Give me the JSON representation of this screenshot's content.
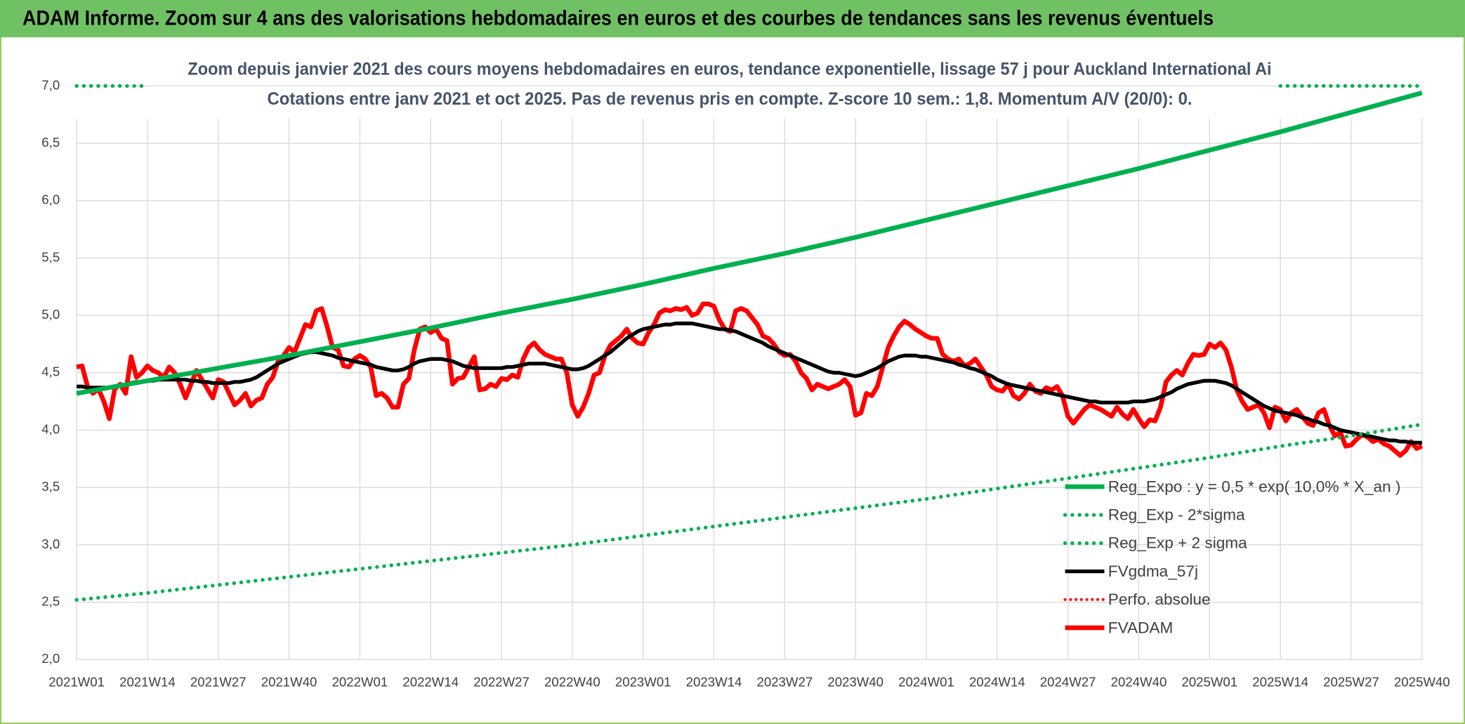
{
  "chart_data": {
    "type": "line",
    "title": "ADAM Informe. Zoom sur 4 ans des valorisations hebdomadaires en euros et des courbes de tendances sans les revenus éventuels",
    "subtitle": [
      "Zoom depuis janvier 2021 des cours moyens hebdomadaires en euros, tendance exponentielle, lissage 57 j pour Auckland International Ai",
      "Cotations entre janv 2021 et oct 2025. Pas de revenus pris en compte. Z-score 10 sem.: 1,8. Momentum A/V (20/0): 0."
    ],
    "categories": [
      "2021W01",
      null,
      null,
      null,
      null,
      null,
      null,
      null,
      null,
      null,
      null,
      null,
      null,
      "2021W14",
      null,
      null,
      null,
      null,
      null,
      null,
      null,
      null,
      null,
      null,
      null,
      null,
      "2021W27",
      null,
      null,
      null,
      null,
      null,
      null,
      null,
      null,
      null,
      null,
      null,
      null,
      "2021W40",
      null,
      null,
      null,
      null,
      null,
      null,
      null,
      null,
      null,
      null,
      null,
      null,
      "2022W01",
      null,
      null,
      null,
      null,
      null,
      null,
      null,
      null,
      null,
      null,
      null,
      null,
      "2022W14",
      null,
      null,
      null,
      null,
      null,
      null,
      null,
      null,
      null,
      null,
      null,
      null,
      "2022W27",
      null,
      null,
      null,
      null,
      null,
      null,
      null,
      null,
      null,
      null,
      null,
      null,
      "2022W40",
      null,
      null,
      null,
      null,
      null,
      null,
      null,
      null,
      null,
      null,
      null,
      null,
      "2023W01",
      null,
      null,
      null,
      null,
      null,
      null,
      null,
      null,
      null,
      null,
      null,
      null,
      "2023W14",
      null,
      null,
      null,
      null,
      null,
      null,
      null,
      null,
      null,
      null,
      null,
      null,
      "2023W27",
      null,
      null,
      null,
      null,
      null,
      null,
      null,
      null,
      null,
      null,
      null,
      null,
      "2023W40",
      null,
      null,
      null,
      null,
      null,
      null,
      null,
      null,
      null,
      null,
      null,
      null,
      "2024W01",
      null,
      null,
      null,
      null,
      null,
      null,
      null,
      null,
      null,
      null,
      null,
      null,
      "2024W14",
      null,
      null,
      null,
      null,
      null,
      null,
      null,
      null,
      null,
      null,
      null,
      null,
      "2024W27",
      null,
      null,
      null,
      null,
      null,
      null,
      null,
      null,
      null,
      null,
      null,
      null,
      "2024W40",
      null,
      null,
      null,
      null,
      null,
      null,
      null,
      null,
      null,
      null,
      null,
      null,
      "2025W01",
      null,
      null,
      null,
      null,
      null,
      null,
      null,
      null,
      null,
      null,
      null,
      null,
      "2025W14",
      null,
      null,
      null,
      null,
      null,
      null,
      null,
      null,
      null,
      null,
      null,
      null,
      "2025W27",
      null,
      null,
      null,
      null,
      null,
      null,
      null,
      null,
      null,
      null,
      null,
      null,
      "2025W40"
    ],
    "ylim": [
      2,
      7
    ],
    "yticks": [
      {
        "value": 2,
        "label": "2,0"
      },
      {
        "value": 2.5,
        "label": "2,5"
      },
      {
        "value": 3,
        "label": "3,0"
      },
      {
        "value": 3.5,
        "label": "3,5"
      },
      {
        "value": 4,
        "label": "4,0"
      },
      {
        "value": 4.5,
        "label": "4,5"
      },
      {
        "value": 5,
        "label": "5,0"
      },
      {
        "value": 5.5,
        "label": "5,5"
      },
      {
        "value": 6,
        "label": "6,0"
      },
      {
        "value": 6.5,
        "label": "6,5"
      },
      {
        "value": 7,
        "label": "7,0"
      }
    ],
    "grid": true,
    "legend": "right",
    "series": [
      {
        "name": "Reg_Expo : y = 0,5 * exp( 10,0% *  X_an )",
        "color": "#00b050",
        "style": "solid",
        "width": 5,
        "x": [
          "2021W01",
          "2021W14",
          "2021W27",
          "2021W40",
          "2022W01",
          "2022W14",
          "2022W27",
          "2022W40",
          "2023W01",
          "2023W14",
          "2023W27",
          "2023W40",
          "2024W01",
          "2024W14",
          "2024W27",
          "2024W40",
          "2025W01",
          "2025W14",
          "2025W27",
          "2025W40"
        ],
        "values": [
          4.32,
          4.43,
          4.54,
          4.65,
          4.77,
          4.89,
          5.02,
          5.14,
          5.27,
          5.41,
          5.54,
          5.68,
          5.83,
          5.98,
          6.13,
          6.28,
          6.44,
          6.6,
          6.77,
          6.94
        ]
      },
      {
        "name": "Reg_Exp - 2*sigma",
        "color": "#00b050",
        "style": "dotted",
        "width": 4,
        "x": [
          "2021W01",
          "2021W14",
          "2021W27",
          "2021W40",
          "2022W01",
          "2022W14",
          "2022W27",
          "2022W40",
          "2023W01",
          "2023W14",
          "2023W27",
          "2023W40",
          "2024W01",
          "2024W14",
          "2024W27",
          "2024W40",
          "2025W01",
          "2025W14",
          "2025W27",
          "2025W40"
        ],
        "values": [
          2.52,
          2.58,
          2.65,
          2.72,
          2.79,
          2.86,
          2.93,
          3.0,
          3.08,
          3.16,
          3.24,
          3.32,
          3.4,
          3.49,
          3.58,
          3.67,
          3.76,
          3.86,
          3.95,
          4.05
        ]
      },
      {
        "name": "Reg_Exp + 2 sigma",
        "color": "#00b050",
        "style": "dotted",
        "width": 4,
        "x": [
          "2021W01",
          "2021W14",
          "2021W14",
          "2025W14",
          "2025W40"
        ],
        "values": [
          7,
          7,
          null,
          7,
          7
        ]
      },
      {
        "name": "FVgdma_57j",
        "color": "#000000",
        "style": "solid",
        "width": 4,
        "values": [
          4.38,
          4.38,
          4.37,
          4.37,
          4.37,
          4.37,
          4.37,
          4.38,
          4.39,
          4.4,
          4.41,
          4.42,
          4.42,
          4.43,
          4.43,
          4.44,
          4.44,
          4.44,
          4.44,
          4.44,
          4.44,
          4.43,
          4.43,
          4.42,
          4.42,
          4.41,
          4.41,
          4.41,
          4.41,
          4.42,
          4.42,
          4.43,
          4.44,
          4.46,
          4.49,
          4.52,
          4.55,
          4.58,
          4.6,
          4.62,
          4.64,
          4.66,
          4.67,
          4.68,
          4.68,
          4.67,
          4.66,
          4.65,
          4.63,
          4.62,
          4.61,
          4.6,
          4.59,
          4.58,
          4.57,
          4.55,
          4.54,
          4.53,
          4.52,
          4.52,
          4.53,
          4.55,
          4.58,
          4.6,
          4.61,
          4.62,
          4.62,
          4.62,
          4.61,
          4.6,
          4.58,
          4.56,
          4.55,
          4.54,
          4.54,
          4.54,
          4.54,
          4.54,
          4.54,
          4.55,
          4.55,
          4.56,
          4.57,
          4.58,
          4.58,
          4.58,
          4.58,
          4.57,
          4.56,
          4.55,
          4.54,
          4.53,
          4.53,
          4.54,
          4.56,
          4.59,
          4.62,
          4.65,
          4.68,
          4.72,
          4.76,
          4.8,
          4.83,
          4.86,
          4.88,
          4.89,
          4.9,
          4.91,
          4.92,
          4.92,
          4.93,
          4.93,
          4.93,
          4.93,
          4.92,
          4.91,
          4.9,
          4.89,
          4.88,
          4.88,
          4.87,
          4.86,
          4.84,
          4.82,
          4.8,
          4.78,
          4.76,
          4.73,
          4.71,
          4.69,
          4.67,
          4.65,
          4.63,
          4.61,
          4.59,
          4.57,
          4.55,
          4.53,
          4.51,
          4.5,
          4.5,
          4.49,
          4.48,
          4.47,
          4.48,
          4.5,
          4.52,
          4.54,
          4.57,
          4.6,
          4.62,
          4.64,
          4.65,
          4.65,
          4.65,
          4.64,
          4.64,
          4.63,
          4.62,
          4.61,
          4.6,
          4.59,
          4.57,
          4.56,
          4.54,
          4.53,
          4.51,
          4.49,
          4.47,
          4.44,
          4.42,
          4.4,
          4.39,
          4.38,
          4.37,
          4.36,
          4.35,
          4.34,
          4.33,
          4.32,
          4.31,
          4.3,
          4.29,
          4.28,
          4.27,
          4.26,
          4.25,
          4.25,
          4.24,
          4.24,
          4.24,
          4.24,
          4.24,
          4.24,
          4.25,
          4.25,
          4.25,
          4.26,
          4.27,
          4.29,
          4.31,
          4.33,
          4.36,
          4.38,
          4.4,
          4.41,
          4.42,
          4.43,
          4.43,
          4.43,
          4.42,
          4.41,
          4.39,
          4.36,
          4.33,
          4.3,
          4.27,
          4.24,
          4.21,
          4.19,
          4.17,
          4.16,
          4.15,
          4.14,
          4.13,
          4.11,
          4.1,
          4.08,
          4.07,
          4.05,
          4.04,
          4.02,
          4.0,
          3.99,
          3.98,
          3.97,
          3.96,
          3.95,
          3.94,
          3.93,
          3.92,
          3.91,
          3.91,
          3.9,
          3.9,
          3.89,
          3.89,
          3.89
        ]
      },
      {
        "name": "Perfo. absolue",
        "color": "#ff0000",
        "style": "dotted",
        "width": 3
      },
      {
        "name": "FVADAM",
        "color": "#ff0000",
        "style": "solid",
        "width": 5,
        "values": [
          4.55,
          4.56,
          4.38,
          4.32,
          4.36,
          4.25,
          4.1,
          4.36,
          4.4,
          4.32,
          4.64,
          4.46,
          4.5,
          4.56,
          4.52,
          4.5,
          4.46,
          4.55,
          4.5,
          4.4,
          4.28,
          4.4,
          4.52,
          4.44,
          4.36,
          4.28,
          4.44,
          4.42,
          4.32,
          4.22,
          4.26,
          4.32,
          4.21,
          4.26,
          4.28,
          4.4,
          4.46,
          4.6,
          4.65,
          4.72,
          4.68,
          4.8,
          4.92,
          4.9,
          5.04,
          5.06,
          4.9,
          4.72,
          4.7,
          4.56,
          4.55,
          4.62,
          4.65,
          4.62,
          4.55,
          4.3,
          4.32,
          4.28,
          4.2,
          4.2,
          4.4,
          4.45,
          4.7,
          4.88,
          4.9,
          4.85,
          4.88,
          4.8,
          4.78,
          4.4,
          4.45,
          4.46,
          4.55,
          4.64,
          4.35,
          4.36,
          4.4,
          4.38,
          4.45,
          4.44,
          4.48,
          4.46,
          4.62,
          4.72,
          4.76,
          4.7,
          4.66,
          4.64,
          4.62,
          4.62,
          4.5,
          4.22,
          4.12,
          4.2,
          4.32,
          4.48,
          4.5,
          4.65,
          4.74,
          4.78,
          4.82,
          4.88,
          4.8,
          4.76,
          4.75,
          4.85,
          4.92,
          5.02,
          5.05,
          5.04,
          5.06,
          5.05,
          5.07,
          5.0,
          5.02,
          5.1,
          5.1,
          5.08,
          4.96,
          4.88,
          4.86,
          5.04,
          5.06,
          5.04,
          4.98,
          4.92,
          4.82,
          4.8,
          4.75,
          4.68,
          4.65,
          4.66,
          4.6,
          4.5,
          4.45,
          4.35,
          4.4,
          4.38,
          4.36,
          4.38,
          4.4,
          4.44,
          4.38,
          4.13,
          4.15,
          4.32,
          4.3,
          4.38,
          4.55,
          4.72,
          4.82,
          4.9,
          4.95,
          4.92,
          4.88,
          4.85,
          4.82,
          4.8,
          4.8,
          4.66,
          4.62,
          4.6,
          4.62,
          4.56,
          4.58,
          4.62,
          4.55,
          4.48,
          4.38,
          4.35,
          4.34,
          4.4,
          4.3,
          4.27,
          4.32,
          4.4,
          4.34,
          4.32,
          4.37,
          4.35,
          4.38,
          4.3,
          4.12,
          4.06,
          4.12,
          4.18,
          4.22,
          4.2,
          4.18,
          4.15,
          4.12,
          4.2,
          4.14,
          4.1,
          4.18,
          4.1,
          4.03,
          4.09,
          4.08,
          4.2,
          4.42,
          4.48,
          4.52,
          4.48,
          4.58,
          4.66,
          4.65,
          4.66,
          4.75,
          4.72,
          4.76,
          4.7,
          4.55,
          4.35,
          4.25,
          4.18,
          4.2,
          4.22,
          4.15,
          4.02,
          4.2,
          4.18,
          4.08,
          4.15,
          4.18,
          4.12,
          4.06,
          4.04,
          4.15,
          4.18,
          4.04,
          3.95,
          3.98,
          3.86,
          3.87,
          3.92,
          3.96,
          3.94,
          3.9,
          3.92,
          3.88,
          3.86,
          3.82,
          3.78,
          3.82,
          3.9,
          3.84,
          3.86
        ]
      }
    ]
  }
}
